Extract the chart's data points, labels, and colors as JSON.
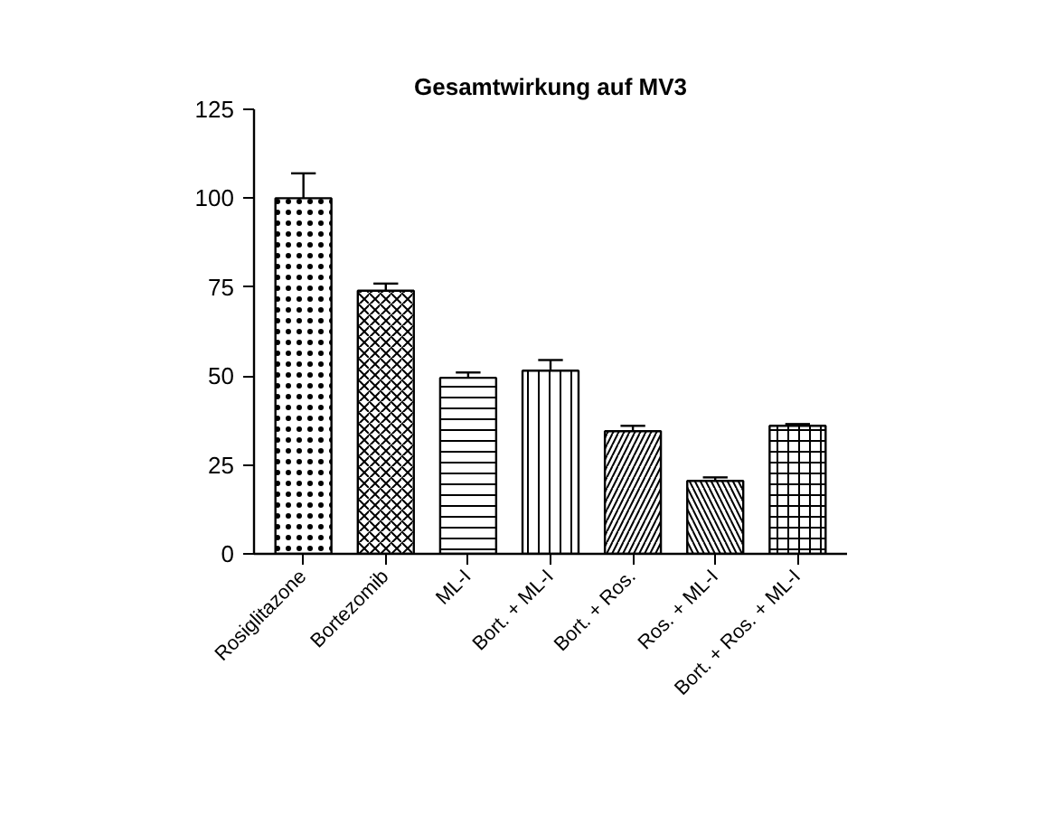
{
  "chart_data": {
    "type": "bar",
    "title": "Gesamtwirkung auf MV3",
    "categories": [
      "Rosiglitazone",
      "Bortezomib",
      "ML-I",
      "Bort. + ML-I",
      "Bort. + Ros.",
      "Ros. + ML-I",
      "Bort. + Ros. + ML-I"
    ],
    "values": [
      100,
      74,
      49.5,
      51.5,
      34.5,
      20.5,
      36
    ],
    "errors": [
      [
        100,
        107
      ],
      [
        74,
        76
      ],
      [
        49.5,
        51
      ],
      [
        51.5,
        54.5
      ],
      [
        34.5,
        36
      ],
      [
        20.5,
        21.5
      ],
      [
        36,
        36.5
      ]
    ],
    "colors": [
      "#ffffff",
      "#ffffff",
      "#ffffff",
      "#ffffff",
      "#ffffff",
      "#ffffff",
      "#ffffff"
    ],
    "ylim": [
      0,
      125
    ],
    "yticks": [
      0,
      25,
      50,
      75,
      100,
      125
    ],
    "grid": false
  }
}
